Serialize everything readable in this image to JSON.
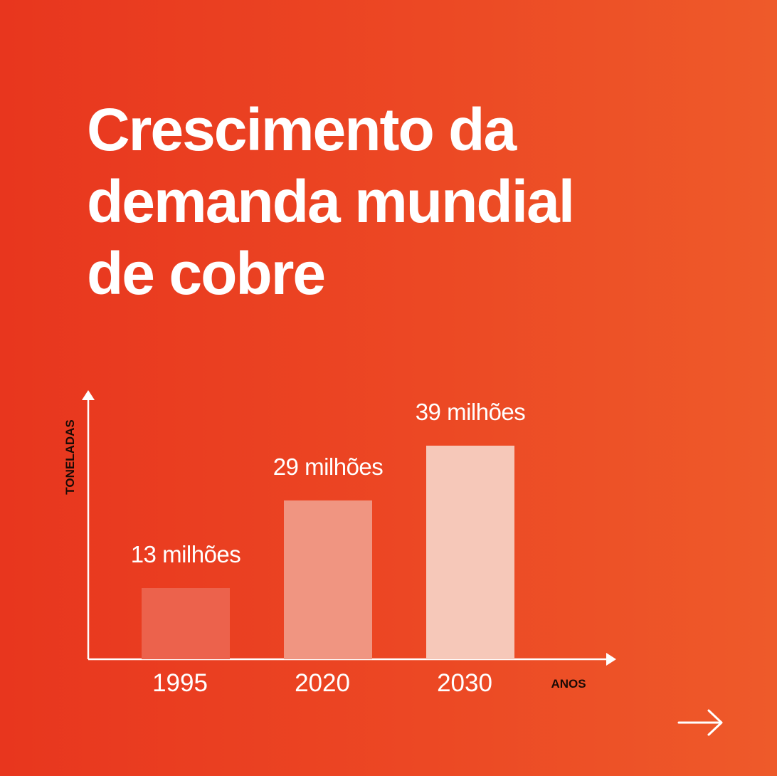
{
  "title_lines": [
    "Crescimento da",
    "demanda mundial",
    "de cobre"
  ],
  "next_icon": "arrow-right-icon",
  "chart_data": {
    "type": "bar",
    "categories": [
      "1995",
      "2020",
      "2030"
    ],
    "values": [
      13,
      29,
      39
    ],
    "value_labels": [
      "13 milhões",
      "29 milhões",
      "39 milhões"
    ],
    "xlabel": "ANOS",
    "ylabel": "TONELADAS",
    "bar_colors": [
      "#EC624C",
      "#F09581",
      "#F6C8B9"
    ],
    "axis_color": "#FFFFFF",
    "label_color": "#FFFFFF",
    "axis_title_color": "#1A0A05",
    "grid": false
  }
}
